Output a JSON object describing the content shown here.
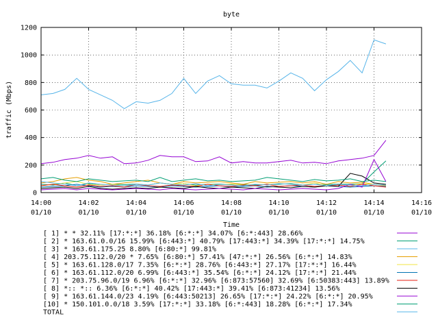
{
  "chart_data": {
    "type": "line",
    "title": "byte",
    "xlabel": "Time",
    "ylabel": "traffic (Mbps)",
    "ylim": [
      0,
      1200
    ],
    "yticks": [
      0,
      200,
      400,
      600,
      800,
      1000,
      1200
    ],
    "xlim": [
      "14:00",
      "14:16"
    ],
    "xticks": [
      {
        "time": "14:00",
        "date": "01/10"
      },
      {
        "time": "14:02",
        "date": "01/10"
      },
      {
        "time": "14:04",
        "date": "01/10"
      },
      {
        "time": "14:06",
        "date": "01/10"
      },
      {
        "time": "14:08",
        "date": "01/10"
      },
      {
        "time": "14:10",
        "date": "01/10"
      },
      {
        "time": "14:12",
        "date": "01/10"
      },
      {
        "time": "14:14",
        "date": "01/10"
      },
      {
        "time": "14:16",
        "date": "01/10"
      }
    ],
    "grid": true,
    "legend_position": "bottom",
    "x": [
      "14:00:00",
      "14:00:30",
      "14:01:00",
      "14:01:30",
      "14:02:00",
      "14:02:30",
      "14:03:00",
      "14:03:30",
      "14:04:00",
      "14:04:30",
      "14:05:00",
      "14:05:30",
      "14:06:00",
      "14:06:30",
      "14:07:00",
      "14:07:30",
      "14:08:00",
      "14:08:30",
      "14:09:00",
      "14:09:30",
      "14:10:00",
      "14:10:30",
      "14:11:00",
      "14:11:30",
      "14:12:00",
      "14:12:30",
      "14:13:00",
      "14:13:30",
      "14:14:00",
      "14:14:30"
    ],
    "series": [
      {
        "name": "[ 1] * * 32.11%  [17:*:*] 36.18% [6:*:*] 34.07% [6:*:443] 28.66%",
        "color": "#9400d3",
        "values": [
          210,
          220,
          240,
          250,
          270,
          250,
          260,
          210,
          215,
          235,
          270,
          260,
          260,
          225,
          230,
          260,
          215,
          225,
          215,
          215,
          225,
          235,
          215,
          220,
          210,
          230,
          240,
          250,
          270,
          380
        ]
      },
      {
        "name": "[ 2] * 163.61.0.0/16 15.99%  [6:443:*] 40.79% [17:443:*] 34.39% [17:*:*] 14.75%",
        "color": "#009e73",
        "values": [
          60,
          55,
          70,
          50,
          65,
          55,
          60,
          58,
          62,
          55,
          70,
          60,
          65,
          55,
          60,
          62,
          58,
          60,
          55,
          58,
          60,
          65,
          55,
          60,
          58,
          62,
          60,
          65,
          150,
          230
        ]
      },
      {
        "name": "[ 3] * 163.61.175.25 8.80%  [6:80:*] 99.81%",
        "color": "#56b4e9",
        "values": [
          710,
          720,
          750,
          830,
          750,
          710,
          670,
          610,
          660,
          650,
          670,
          720,
          830,
          720,
          810,
          850,
          790,
          780,
          780,
          760,
          810,
          870,
          830,
          740,
          820,
          880,
          960,
          870,
          1110,
          1080
        ]
      },
      {
        "name": "[ 4] 203.75.112.0/20 * 7.65%  [6:80:*] 57.41% [47:*:*] 26.56% [6:*:*] 14.83%",
        "color": "#e69f00",
        "values": [
          70,
          80,
          100,
          110,
          90,
          80,
          60,
          70,
          80,
          90,
          70,
          60,
          80,
          70,
          75,
          80,
          70,
          60,
          80,
          70,
          75,
          80,
          70,
          80,
          60,
          80,
          70,
          75,
          60,
          50
        ]
      },
      {
        "name": "[ 5] * 163.61.128.0/17 7.35%  [6:*:*] 28.76% [6:443:*] 27.17% [17:*:*] 16.44%",
        "color": "#f0e442",
        "values": [
          50,
          60,
          70,
          80,
          60,
          55,
          60,
          50,
          60,
          55,
          70,
          60,
          65,
          50,
          60,
          58,
          62,
          55,
          60,
          58,
          65,
          60,
          55,
          70,
          50,
          60,
          55,
          65,
          60,
          55
        ]
      },
      {
        "name": "[ 6] * 163.61.112.0/20 6.99%  [6:443:*] 35.54% [6:*:*] 24.12% [17:*:*] 21.44%",
        "color": "#0072b2",
        "values": [
          40,
          45,
          50,
          60,
          50,
          40,
          45,
          40,
          50,
          45,
          40,
          50,
          45,
          40,
          45,
          50,
          40,
          45,
          50,
          40,
          45,
          50,
          45,
          40,
          50,
          45,
          40,
          45,
          50,
          45
        ]
      },
      {
        "name": "[ 7] * 203.75.96.0/19 6.96%  [6:*:*] 32.96% [6:873:57560] 32.69% [6:50383:443] 13.89%",
        "color": "#e51e10",
        "values": [
          50,
          60,
          50,
          40,
          55,
          45,
          50,
          40,
          60,
          50,
          45,
          55,
          50,
          45,
          60,
          50,
          45,
          55,
          50,
          60,
          45,
          50,
          55,
          45,
          50,
          55,
          45,
          60,
          50,
          40
        ]
      },
      {
        "name": "[ 8] *:: *:: 6.36%  [6:*:*] 40.42% [17:443:*] 39.41% [6:873:41234] 13.56%",
        "color": "#000000",
        "values": [
          30,
          35,
          40,
          30,
          45,
          30,
          25,
          30,
          35,
          30,
          40,
          35,
          30,
          45,
          35,
          30,
          40,
          35,
          30,
          45,
          40,
          35,
          45,
          40,
          50,
          45,
          140,
          120,
          70,
          60
        ]
      },
      {
        "name": "[ 9] * 163.61.144.0/23 4.19%  [6:443:50213] 26.65% [17:*:*] 24.22% [6:*:*] 20.95%",
        "color": "#9400d3",
        "values": [
          20,
          25,
          30,
          20,
          30,
          25,
          20,
          25,
          30,
          25,
          20,
          30,
          25,
          20,
          25,
          30,
          25,
          20,
          30,
          25,
          20,
          25,
          30,
          25,
          20,
          30,
          60,
          40,
          240,
          80
        ]
      },
      {
        "name": "[10] * 150.101.0.0/18 3.59%  [17:*:*] 33.18% [6:*:443] 18.28% [6:*:*] 17.34%",
        "color": "#009e73",
        "values": [
          100,
          110,
          90,
          80,
          100,
          90,
          80,
          85,
          90,
          80,
          110,
          80,
          90,
          100,
          85,
          90,
          80,
          85,
          90,
          110,
          100,
          90,
          80,
          95,
          85,
          90,
          100,
          80,
          90,
          80
        ]
      },
      {
        "name": "TOTAL",
        "color": "#56b4e9",
        "values": [
          80,
          70,
          60,
          50,
          70,
          60,
          55,
          50,
          60,
          55,
          70,
          60,
          55,
          65,
          50,
          60,
          55,
          50,
          60,
          55,
          65,
          60,
          55,
          60,
          50,
          60,
          55,
          50,
          60,
          55
        ]
      }
    ]
  }
}
